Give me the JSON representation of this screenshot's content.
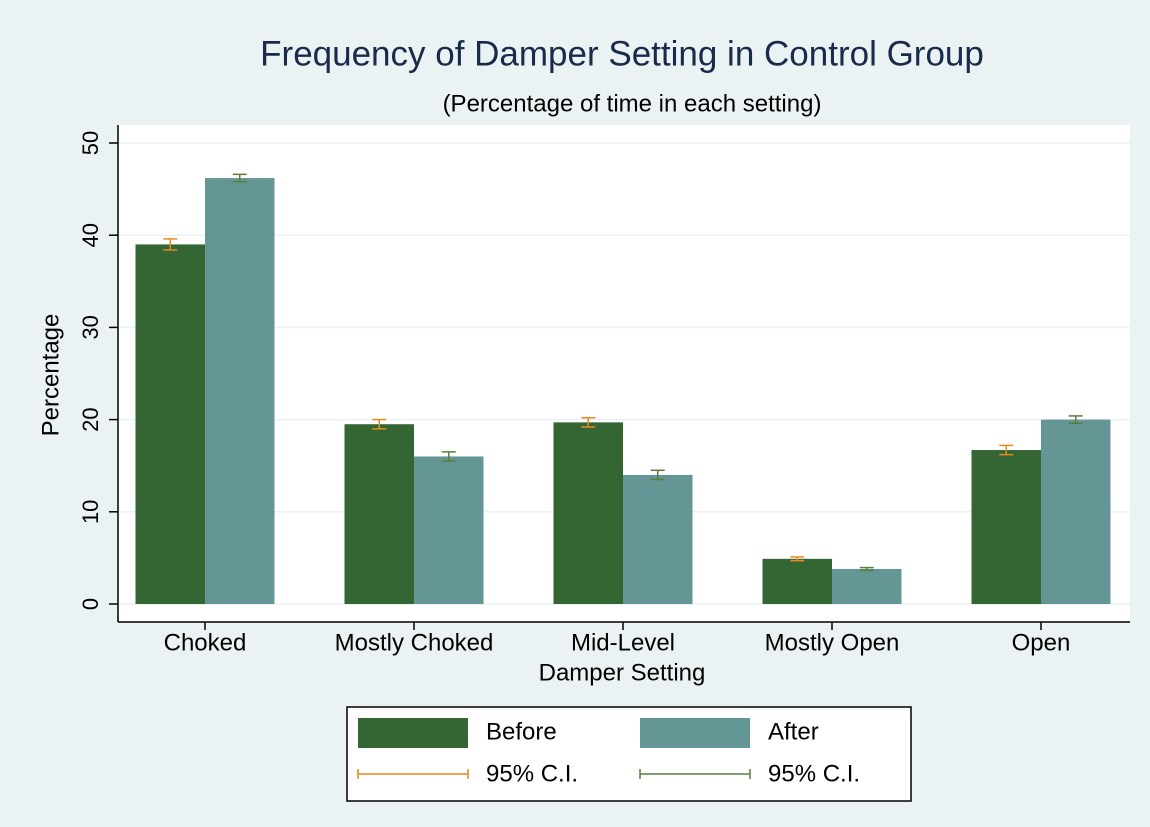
{
  "chart_data": {
    "type": "bar",
    "title": "Frequency of Damper Setting in Control Group",
    "subtitle": "(Percentage of time in each setting)",
    "x_label": "Damper Setting",
    "y_label": "Percentage",
    "categories": [
      "Choked",
      "Mostly Choked",
      "Mid-Level",
      "Mostly Open",
      "Open"
    ],
    "series": [
      {
        "name": "Before",
        "color": "#336633",
        "values": [
          39,
          19.5,
          19.7,
          4.9,
          16.7
        ],
        "errors": [
          0.6,
          0.5,
          0.5,
          0.2,
          0.5
        ],
        "ci_name": "95% C.I.",
        "ci_color": "#e8891e"
      },
      {
        "name": "After",
        "color": "#649696",
        "values": [
          46.2,
          16,
          14,
          3.8,
          20
        ],
        "errors": [
          0.4,
          0.5,
          0.5,
          0.15,
          0.4
        ],
        "ci_name": "95% C.I.",
        "ci_color": "#5b7f3a"
      }
    ],
    "ylim": [
      0,
      50
    ],
    "yticks": [
      0,
      10,
      20,
      30,
      40,
      50
    ],
    "grid": true
  }
}
